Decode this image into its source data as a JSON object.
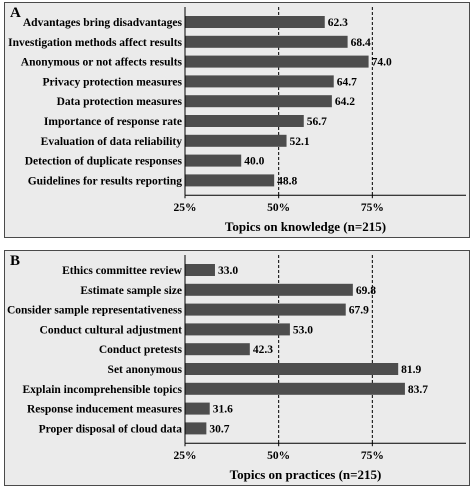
{
  "chart_data": [
    {
      "type": "bar",
      "orientation": "horizontal",
      "panel_label": "A",
      "xlabel": "Topics on knowledge (n=215)",
      "xlim": [
        25,
        100
      ],
      "xticks": [
        "25%",
        "50%",
        "75%"
      ],
      "reference_lines": [
        50,
        75
      ],
      "categories": [
        "Advantages bring disadvantages",
        "Investigation methods affect results",
        "Anonymous or not affects results",
        "Privacy protection measures",
        "Data protection measures",
        "Importance of response rate",
        "Evaluation of data reliability",
        "Detection of duplicate responses",
        "Guidelines for results reporting"
      ],
      "values": [
        62.3,
        68.4,
        74.0,
        64.7,
        64.2,
        56.7,
        52.1,
        40.0,
        48.8
      ],
      "value_labels": [
        "62.3",
        "68.4",
        "74.0",
        "64.7",
        "64.2",
        "56.7",
        "52.1",
        "40.0",
        "48.8"
      ],
      "color": "#4d4d4d"
    },
    {
      "type": "bar",
      "orientation": "horizontal",
      "panel_label": "B",
      "xlabel": "Topics on practices (n=215)",
      "xlim": [
        25,
        100
      ],
      "xticks": [
        "25%",
        "50%",
        "75%"
      ],
      "reference_lines": [
        50,
        75
      ],
      "categories": [
        "Ethics committee review",
        "Estimate sample size",
        "Consider sample representativeness",
        "Conduct cultural adjustment",
        "Conduct pretests",
        "Set anonymous",
        "Explain incomprehensible topics",
        "Response inducement measures",
        "Proper disposal of cloud data"
      ],
      "values": [
        33.0,
        69.8,
        67.9,
        53.0,
        42.3,
        81.9,
        83.7,
        31.6,
        30.7
      ],
      "value_labels": [
        "33.0",
        "69.8",
        "67.9",
        "53.0",
        "42.3",
        "81.9",
        "83.7",
        "31.6",
        "30.7"
      ],
      "color": "#4d4d4d"
    }
  ]
}
